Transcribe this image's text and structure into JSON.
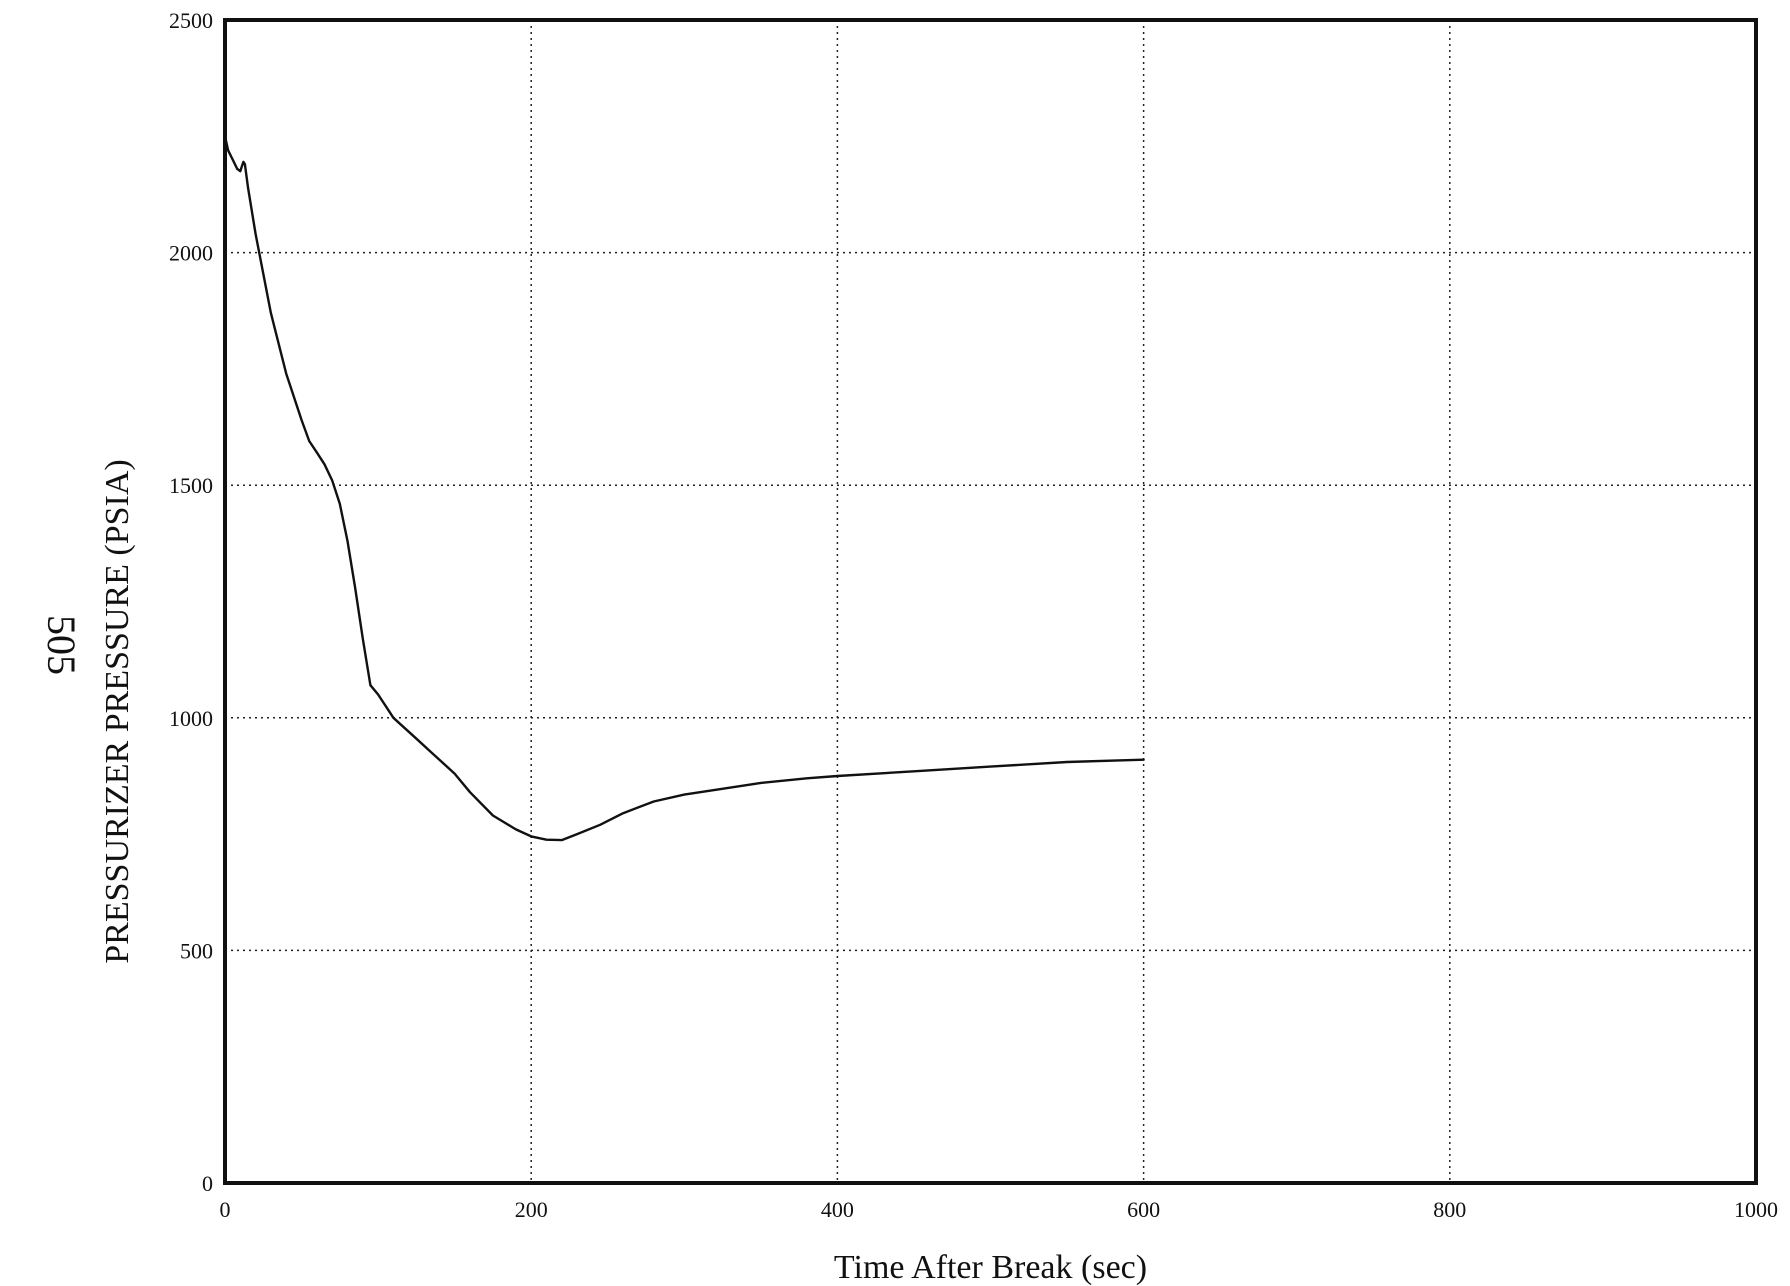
{
  "page_mark": "505",
  "chart_data": {
    "type": "line",
    "xlabel": "Time After Break (sec)",
    "ylabel": "PRESSURIZER PRESSURE (PSIA)",
    "xlim": [
      0,
      1000
    ],
    "ylim": [
      0,
      2500
    ],
    "xticks": [
      0,
      200,
      400,
      600,
      800,
      1000
    ],
    "yticks": [
      0,
      500,
      1000,
      1500,
      2000,
      2500
    ],
    "grid": true,
    "series": [
      {
        "x": [
          0,
          2,
          5,
          8,
          10,
          11,
          12,
          13,
          15,
          20,
          30,
          40,
          50,
          55,
          60,
          65,
          70,
          75,
          80,
          85,
          90,
          95,
          100,
          105,
          110,
          115,
          125,
          135,
          150,
          160,
          175,
          190,
          200,
          210,
          220,
          230,
          245,
          260,
          280,
          300,
          320,
          350,
          380,
          400,
          450,
          500,
          550,
          600
        ],
        "y": [
          2250,
          2220,
          2200,
          2180,
          2175,
          2185,
          2195,
          2190,
          2140,
          2040,
          1870,
          1740,
          1640,
          1595,
          1570,
          1545,
          1510,
          1460,
          1380,
          1280,
          1170,
          1070,
          1050,
          1025,
          1000,
          985,
          955,
          925,
          880,
          840,
          790,
          760,
          745,
          738,
          737,
          750,
          770,
          795,
          820,
          835,
          845,
          860,
          870,
          875,
          885,
          895,
          905,
          910
        ]
      }
    ]
  }
}
